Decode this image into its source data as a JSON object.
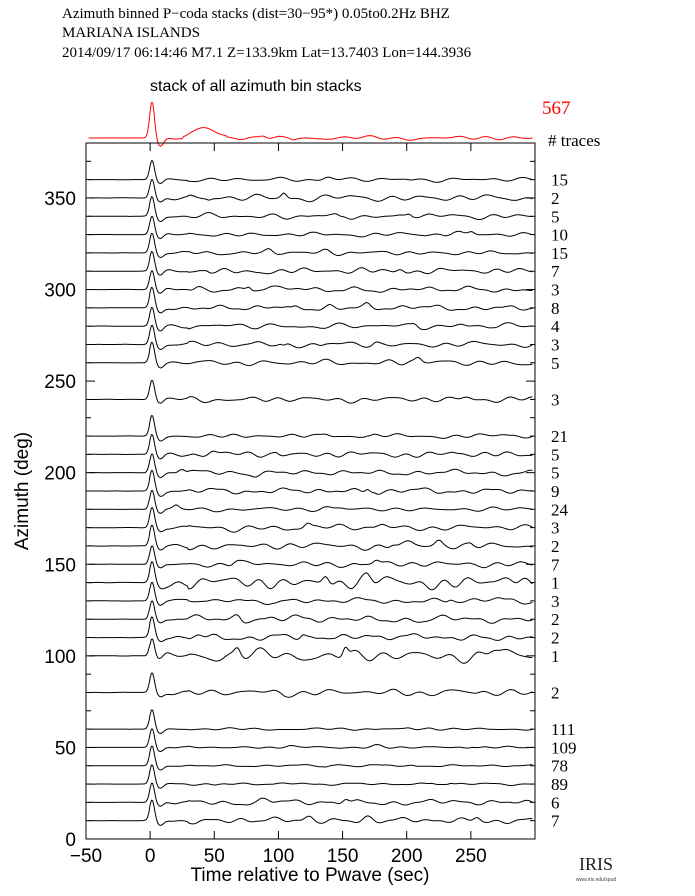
{
  "header": {
    "line1": "Azimuth binned P−coda stacks (dist=30−95*)  0.05to0.2Hz  BHZ",
    "line2": "MARIANA ISLANDS",
    "line3": "2014/09/17   06:14:46   M7.1   Z=133.9km  Lat=13.7403  Lon=144.3936"
  },
  "top_stack": {
    "label": "stack of all azimuth bin stacks",
    "count": "567",
    "count_header": "# traces",
    "color": "#ff0000"
  },
  "logo": {
    "text": "IRIS",
    "subtext": "www.iris.edu/spud"
  },
  "chart_data": {
    "type": "line",
    "xlabel": "Time relative to Pwave (sec)",
    "ylabel": "Azimuth (deg)",
    "xlim": [
      -50,
      300
    ],
    "ylim": [
      0,
      380
    ],
    "xticks": [
      -50,
      0,
      50,
      100,
      150,
      200,
      250
    ],
    "yticks": [
      0,
      50,
      100,
      150,
      200,
      250,
      300,
      350
    ],
    "trace_color": "#000000",
    "stack_color": "#ff0000",
    "bins": [
      {
        "azimuth": 360,
        "count": "15"
      },
      {
        "azimuth": 350,
        "count": "2"
      },
      {
        "azimuth": 340,
        "count": "5"
      },
      {
        "azimuth": 330,
        "count": "10"
      },
      {
        "azimuth": 320,
        "count": "15"
      },
      {
        "azimuth": 310,
        "count": "7"
      },
      {
        "azimuth": 300,
        "count": "3"
      },
      {
        "azimuth": 290,
        "count": "8"
      },
      {
        "azimuth": 280,
        "count": "4"
      },
      {
        "azimuth": 270,
        "count": "3"
      },
      {
        "azimuth": 260,
        "count": "5"
      },
      {
        "azimuth": 240,
        "count": "3"
      },
      {
        "azimuth": 220,
        "count": "21"
      },
      {
        "azimuth": 210,
        "count": "5"
      },
      {
        "azimuth": 200,
        "count": "5"
      },
      {
        "azimuth": 190,
        "count": "9"
      },
      {
        "azimuth": 180,
        "count": "24"
      },
      {
        "azimuth": 170,
        "count": "3"
      },
      {
        "azimuth": 160,
        "count": "2"
      },
      {
        "azimuth": 150,
        "count": "7"
      },
      {
        "azimuth": 140,
        "count": "1"
      },
      {
        "azimuth": 130,
        "count": "3"
      },
      {
        "azimuth": 120,
        "count": "2"
      },
      {
        "azimuth": 110,
        "count": "2"
      },
      {
        "azimuth": 100,
        "count": "1"
      },
      {
        "azimuth": 80,
        "count": "2"
      },
      {
        "azimuth": 60,
        "count": "111"
      },
      {
        "azimuth": 50,
        "count": "109"
      },
      {
        "azimuth": 40,
        "count": "78"
      },
      {
        "azimuth": 30,
        "count": "89"
      },
      {
        "azimuth": 20,
        "count": "6"
      },
      {
        "azimuth": 10,
        "count": "7"
      }
    ]
  }
}
